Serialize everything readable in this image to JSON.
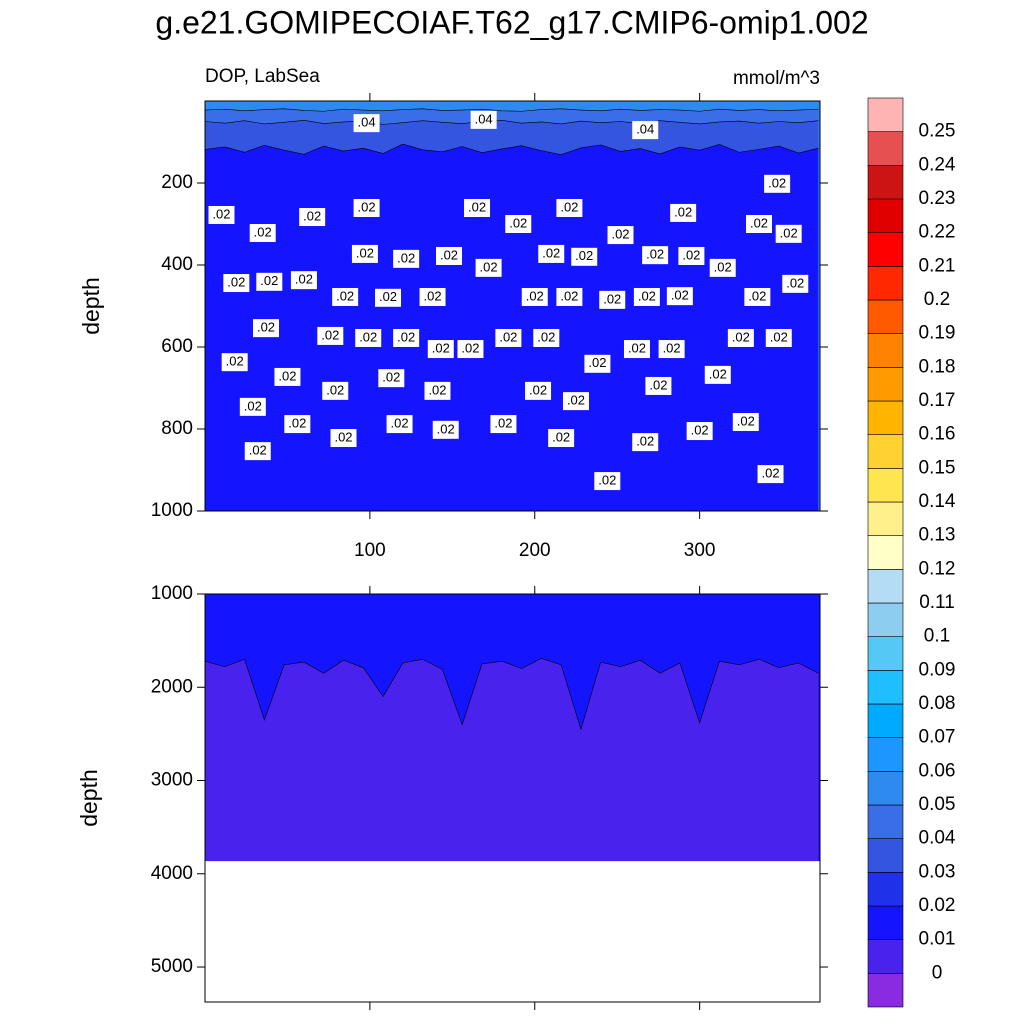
{
  "chart_data": {
    "type": "contour",
    "title": "g.e21.GOMIPECOIAF.T62_g17.CMIP6-omip1.002",
    "subtitle_left": "DOP, LabSea",
    "subtitle_right": "mmol/m^3",
    "y_label": "depth",
    "x": [
      0,
      12,
      24,
      36,
      48,
      60,
      72,
      84,
      96,
      108,
      120,
      132,
      144,
      156,
      168,
      180,
      192,
      204,
      216,
      228,
      240,
      252,
      264,
      276,
      288,
      300,
      312,
      324,
      336,
      348,
      360,
      372
    ],
    "xlim": [
      0,
      373
    ],
    "xticks": [
      100,
      200,
      300
    ],
    "panels": [
      {
        "ylim": [
          0,
          1000
        ],
        "yticks": [
          200,
          400,
          600,
          800,
          1000
        ],
        "fills": [
          {
            "band": 6
          },
          {
            "band": 5,
            "top": [
              22,
              20,
              24,
              21,
              19,
              23,
              25,
              20,
              22,
              24,
              21,
              19,
              23,
              22,
              20,
              24,
              25,
              21,
              19,
              22,
              24,
              20,
              23,
              21,
              22,
              25,
              20,
              23,
              21,
              24,
              22,
              20
            ]
          },
          {
            "band": 4,
            "top": [
              50,
              54,
              48,
              56,
              52,
              47,
              55,
              51,
              49,
              57,
              53,
              48,
              52,
              55,
              50,
              47,
              54,
              51,
              56,
              49,
              53,
              50,
              55,
              48,
              52,
              56,
              51,
              49,
              54,
              50,
              53,
              48
            ]
          },
          {
            "band": 2,
            "top": [
              118,
              112,
              125,
              108,
              120,
              130,
              110,
              122,
              115,
              128,
              105,
              119,
              124,
              111,
              126,
              117,
              109,
              121,
              131,
              114,
              107,
              123,
              116,
              129,
              112,
              120,
              106,
              125,
              118,
              110,
              127,
              115
            ]
          }
        ]
      },
      {
        "ylim": [
          1000,
          5375
        ],
        "yticks": [
          1000,
          2000,
          3000,
          4000,
          5000
        ],
        "data_bottom": 3870,
        "fills": [
          {
            "band": 2
          },
          {
            "band": 1,
            "top": [
              1720,
              1780,
              1700,
              2350,
              1760,
              1730,
              1850,
              1710,
              1790,
              2100,
              1740,
              1700,
              1810,
              2400,
              1750,
              1720,
              1800,
              1690,
              1760,
              2450,
              1730,
              1780,
              1710,
              1850,
              1740,
              2380,
              1720,
              1760,
              1700,
              1790,
              1740,
              1850
            ]
          }
        ]
      }
    ],
    "colorbar": {
      "levels": [
        0,
        0.01,
        0.02,
        0.03,
        0.04,
        0.05,
        0.06,
        0.07,
        0.08,
        0.09,
        0.1,
        0.11,
        0.12,
        0.13,
        0.14,
        0.15,
        0.16,
        0.17,
        0.18,
        0.19,
        0.2,
        0.21,
        0.22,
        0.23,
        0.24,
        0.25
      ],
      "colors": [
        "#8a2be2",
        "#4a22ee",
        "#1414ff",
        "#1f32ea",
        "#3355e0",
        "#3a6ee8",
        "#2f8af0",
        "#1e96ff",
        "#00aaff",
        "#1ebeff",
        "#55c8f5",
        "#8ccdf0",
        "#b4dcf5",
        "#ffffc8",
        "#fff08c",
        "#ffe650",
        "#ffd232",
        "#ffb400",
        "#ff9a00",
        "#ff8200",
        "#ff5a00",
        "#ff2800",
        "#ff0000",
        "#e10000",
        "#cc1414",
        "#e65050",
        "#ffb4b4"
      ]
    },
    "contour_labels": [
      {
        "label": ".04",
        "x": 98,
        "depth": 54
      },
      {
        "label": ".04",
        "x": 169,
        "depth": 46
      },
      {
        "label": ".04",
        "x": 267,
        "depth": 71
      },
      {
        "label": ".02",
        "x": 10,
        "depth": 278
      },
      {
        "label": ".02",
        "x": 35,
        "depth": 322
      },
      {
        "label": ".02",
        "x": 65,
        "depth": 283
      },
      {
        "label": ".02",
        "x": 98,
        "depth": 261
      },
      {
        "label": ".02",
        "x": 165,
        "depth": 261
      },
      {
        "label": ".02",
        "x": 190,
        "depth": 300
      },
      {
        "label": ".02",
        "x": 221,
        "depth": 261
      },
      {
        "label": ".02",
        "x": 252,
        "depth": 327
      },
      {
        "label": ".02",
        "x": 290,
        "depth": 273
      },
      {
        "label": ".02",
        "x": 336,
        "depth": 300
      },
      {
        "label": ".02",
        "x": 354,
        "depth": 324
      },
      {
        "label": ".02",
        "x": 347,
        "depth": 202
      },
      {
        "label": ".02",
        "x": 19,
        "depth": 444
      },
      {
        "label": ".02",
        "x": 39,
        "depth": 441
      },
      {
        "label": ".02",
        "x": 60,
        "depth": 437
      },
      {
        "label": ".02",
        "x": 97,
        "depth": 373
      },
      {
        "label": ".02",
        "x": 122,
        "depth": 385
      },
      {
        "label": ".02",
        "x": 148,
        "depth": 378
      },
      {
        "label": ".02",
        "x": 172,
        "depth": 407
      },
      {
        "label": ".02",
        "x": 210,
        "depth": 373
      },
      {
        "label": ".02",
        "x": 230,
        "depth": 380
      },
      {
        "label": ".02",
        "x": 273,
        "depth": 376
      },
      {
        "label": ".02",
        "x": 295,
        "depth": 378
      },
      {
        "label": ".02",
        "x": 314,
        "depth": 407
      },
      {
        "label": ".02",
        "x": 358,
        "depth": 446
      },
      {
        "label": ".02",
        "x": 85,
        "depth": 478
      },
      {
        "label": ".02",
        "x": 111,
        "depth": 480
      },
      {
        "label": ".02",
        "x": 138,
        "depth": 478
      },
      {
        "label": ".02",
        "x": 200,
        "depth": 478
      },
      {
        "label": ".02",
        "x": 221,
        "depth": 478
      },
      {
        "label": ".02",
        "x": 247,
        "depth": 485
      },
      {
        "label": ".02",
        "x": 268,
        "depth": 478
      },
      {
        "label": ".02",
        "x": 288,
        "depth": 476
      },
      {
        "label": ".02",
        "x": 335,
        "depth": 478
      },
      {
        "label": ".02",
        "x": 37,
        "depth": 554
      },
      {
        "label": ".02",
        "x": 76,
        "depth": 573
      },
      {
        "label": ".02",
        "x": 99,
        "depth": 578
      },
      {
        "label": ".02",
        "x": 122,
        "depth": 578
      },
      {
        "label": ".02",
        "x": 143,
        "depth": 605
      },
      {
        "label": ".02",
        "x": 161,
        "depth": 605
      },
      {
        "label": ".02",
        "x": 184,
        "depth": 578
      },
      {
        "label": ".02",
        "x": 207,
        "depth": 578
      },
      {
        "label": ".02",
        "x": 262,
        "depth": 605
      },
      {
        "label": ".02",
        "x": 283,
        "depth": 605
      },
      {
        "label": ".02",
        "x": 325,
        "depth": 578
      },
      {
        "label": ".02",
        "x": 348,
        "depth": 578
      },
      {
        "label": ".02",
        "x": 18,
        "depth": 637
      },
      {
        "label": ".02",
        "x": 50,
        "depth": 673
      },
      {
        "label": ".02",
        "x": 238,
        "depth": 641
      },
      {
        "label": ".02",
        "x": 275,
        "depth": 695
      },
      {
        "label": ".02",
        "x": 311,
        "depth": 668
      },
      {
        "label": ".02",
        "x": 113,
        "depth": 676
      },
      {
        "label": ".02",
        "x": 79,
        "depth": 707
      },
      {
        "label": ".02",
        "x": 141,
        "depth": 707
      },
      {
        "label": ".02",
        "x": 202,
        "depth": 707
      },
      {
        "label": ".02",
        "x": 29,
        "depth": 746
      },
      {
        "label": ".02",
        "x": 56,
        "depth": 788
      },
      {
        "label": ".02",
        "x": 118,
        "depth": 788
      },
      {
        "label": ".02",
        "x": 146,
        "depth": 802
      },
      {
        "label": ".02",
        "x": 181,
        "depth": 788
      },
      {
        "label": ".02",
        "x": 225,
        "depth": 732
      },
      {
        "label": ".02",
        "x": 216,
        "depth": 822
      },
      {
        "label": ".02",
        "x": 267,
        "depth": 832
      },
      {
        "label": ".02",
        "x": 300,
        "depth": 805
      },
      {
        "label": ".02",
        "x": 328,
        "depth": 783
      },
      {
        "label": ".02",
        "x": 84,
        "depth": 822
      },
      {
        "label": ".02",
        "x": 32,
        "depth": 854
      },
      {
        "label": ".02",
        "x": 244,
        "depth": 927
      },
      {
        "label": ".02",
        "x": 343,
        "depth": 910
      }
    ]
  }
}
